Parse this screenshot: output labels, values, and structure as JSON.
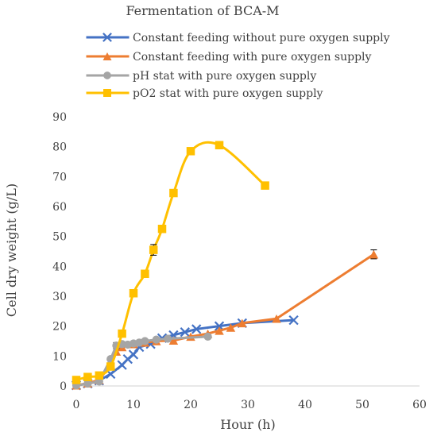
{
  "chart_data": {
    "type": "line",
    "title": "Fermentation of BCA-M",
    "xlabel": "Hour (h)",
    "ylabel": "Cell dry weight (g/L)",
    "xlim": [
      0,
      60
    ],
    "ylim": [
      0,
      90
    ],
    "xticks": [
      0,
      10,
      20,
      30,
      40,
      50,
      60
    ],
    "yticks": [
      0,
      10,
      20,
      30,
      40,
      50,
      60,
      70,
      80,
      90
    ],
    "grid": false,
    "legend_position": "top",
    "series": [
      {
        "name": "Constant feeding without pure oxygen supply",
        "color": "#4472C4",
        "marker": "x",
        "smooth": false,
        "points": [
          [
            0,
            0.2
          ],
          [
            2,
            0.8
          ],
          [
            4,
            1.8
          ],
          [
            6,
            4.0
          ],
          [
            8,
            7.0
          ],
          [
            9,
            9.0
          ],
          [
            10,
            10.5
          ],
          [
            11,
            13.0
          ],
          [
            13,
            14.0
          ],
          [
            15,
            16.0
          ],
          [
            17,
            17.0
          ],
          [
            19,
            18.0
          ],
          [
            21,
            19.0
          ],
          [
            25,
            20.0
          ],
          [
            29,
            21.0
          ],
          [
            38,
            22.0
          ]
        ]
      },
      {
        "name": "Constant feeding with pure oxygen supply",
        "color": "#ED7D31",
        "marker": "triangle",
        "smooth": false,
        "points": [
          [
            0,
            0.2
          ],
          [
            2,
            0.9
          ],
          [
            4,
            2.0
          ],
          [
            6,
            7.0
          ],
          [
            7,
            11.5
          ],
          [
            8,
            13.0
          ],
          [
            10,
            14.0
          ],
          [
            12,
            14.5
          ],
          [
            14,
            15.0
          ],
          [
            17,
            15.2
          ],
          [
            20,
            16.5
          ],
          [
            23,
            17.5
          ],
          [
            25,
            18.5
          ],
          [
            27,
            19.5
          ],
          [
            29,
            21.0
          ],
          [
            35,
            22.5
          ],
          [
            52,
            44.0
          ]
        ],
        "error_bars": [
          {
            "x": 52,
            "err": 1.5
          }
        ]
      },
      {
        "name": "pH stat with pure oxygen supply",
        "color": "#A5A5A5",
        "marker": "circle",
        "smooth": false,
        "points": [
          [
            0,
            0.2
          ],
          [
            2,
            0.8
          ],
          [
            4,
            1.5
          ],
          [
            6,
            9.0
          ],
          [
            7,
            13.5
          ],
          [
            8,
            14.0
          ],
          [
            9,
            13.8
          ],
          [
            10,
            14.2
          ],
          [
            11,
            14.5
          ],
          [
            12,
            15.0
          ],
          [
            14,
            15.5
          ],
          [
            16,
            15.8
          ],
          [
            23,
            16.5
          ]
        ],
        "error_bars": [
          {
            "x": 7,
            "err": 1.0
          }
        ]
      },
      {
        "name": "pO2 stat with pure oxygen supply",
        "color": "#FFC000",
        "marker": "square",
        "smooth": true,
        "points": [
          [
            0,
            2.0
          ],
          [
            2,
            3.0
          ],
          [
            4,
            3.5
          ],
          [
            6,
            6.5
          ],
          [
            8,
            17.5
          ],
          [
            10,
            31.0
          ],
          [
            12,
            37.5
          ],
          [
            13.5,
            45.5
          ],
          [
            15,
            52.5
          ],
          [
            17,
            64.5
          ],
          [
            20,
            78.5
          ],
          [
            25,
            80.5
          ],
          [
            33,
            67.0
          ]
        ],
        "error_bars": [
          {
            "x": 13.5,
            "err": 1.8
          },
          {
            "x": 17,
            "err": 0.8
          },
          {
            "x": 25,
            "err": 0.5
          }
        ]
      }
    ]
  }
}
